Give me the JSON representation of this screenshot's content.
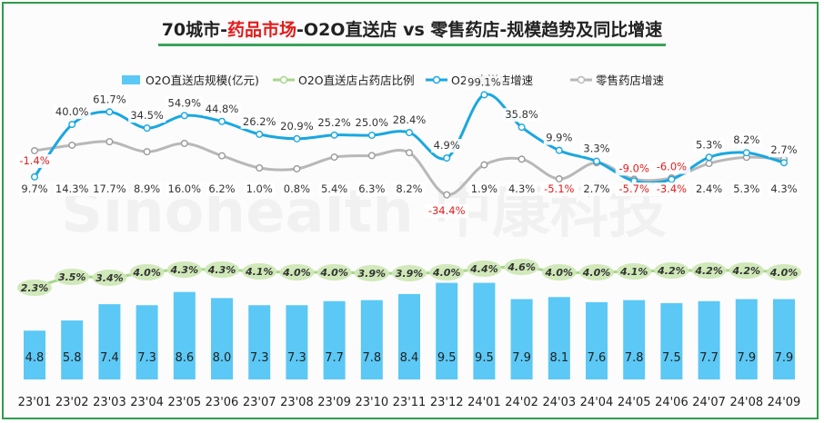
{
  "chart_data": {
    "type": "bar+line",
    "title_parts": [
      "70城市-",
      "药品市场",
      "-O2O直送店 vs 零售药店-规模趋势及同比增速"
    ],
    "watermark": "Sinohealth 中康科技",
    "categories": [
      "23'01",
      "23'02",
      "23'03",
      "23'04",
      "23'05",
      "23'06",
      "23'07",
      "23'08",
      "23'09",
      "23'10",
      "23'11",
      "23'12",
      "24'01",
      "24'02",
      "24'03",
      "24'04",
      "24'05",
      "24'06",
      "24'07",
      "24'08",
      "24'09"
    ],
    "series": [
      {
        "name": "O2O直送店规模(亿元)",
        "kind": "bar",
        "color": "#5bc8f5",
        "values": [
          4.8,
          5.8,
          7.4,
          7.3,
          8.6,
          8.0,
          7.3,
          7.3,
          7.7,
          7.8,
          8.4,
          9.5,
          9.5,
          7.9,
          8.1,
          7.6,
          7.8,
          7.5,
          7.7,
          7.9,
          7.9
        ]
      },
      {
        "name": "O2O直送店占药店比例",
        "kind": "line",
        "color": "#a8d68a",
        "values": [
          "2.3%",
          "3.5%",
          "3.4%",
          "4.0%",
          "4.3%",
          "4.3%",
          "4.1%",
          "4.0%",
          "4.0%",
          "3.9%",
          "3.9%",
          "4.0%",
          "4.4%",
          "4.6%",
          "4.0%",
          "4.0%",
          "4.1%",
          "4.2%",
          "4.2%",
          "4.2%",
          "4.0%"
        ]
      },
      {
        "name": "O2O直送店增速",
        "kind": "line",
        "color": "#1aa7e0",
        "values": [
          "-1.4%",
          "40.0%",
          "61.7%",
          "34.5%",
          "54.9%",
          "44.8%",
          "26.2%",
          "20.9%",
          "25.2%",
          "25.0%",
          "28.4%",
          "4.9%",
          "99.1%",
          "35.8%",
          "9.9%",
          "3.3%",
          "-9.0%",
          "-6.0%",
          "5.3%",
          "8.2%",
          "2.7%"
        ]
      },
      {
        "name": "零售药店增速",
        "kind": "line",
        "color": "#b8b8b8",
        "values": [
          "9.7%",
          "14.3%",
          "17.7%",
          "8.9%",
          "16.0%",
          "6.2%",
          "1.0%",
          "0.8%",
          "5.4%",
          "6.3%",
          "8.2%",
          "-34.4%",
          "1.9%",
          "4.3%",
          "-5.1%",
          "2.7%",
          "-5.7%",
          "-3.4%",
          "2.4%",
          "5.3%",
          "4.3%"
        ]
      }
    ],
    "colors": {
      "negative_label": "#e11d1d",
      "label_text": "#333333",
      "title_accent": "#e11d1d",
      "frame": "#2e9d4a",
      "ratio_label_bg": "#cfe8b6"
    }
  }
}
